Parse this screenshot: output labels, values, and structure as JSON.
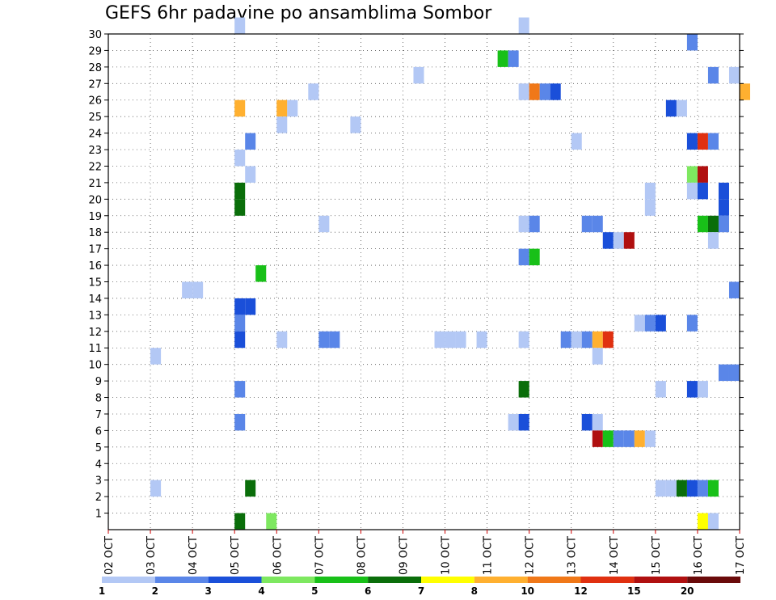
{
  "chart_data": {
    "type": "heatmap",
    "title": "GEFS 6hr padavine po ansamblima Sombor",
    "xlabel": "",
    "ylabel": "",
    "x_ticks": [
      "02 OCT",
      "03 OCT",
      "04 OCT",
      "05 OCT",
      "06 OCT",
      "07 OCT",
      "08 OCT",
      "09 OCT",
      "10 OCT",
      "11 OCT",
      "12 OCT",
      "13 OCT",
      "14 OCT",
      "15 OCT",
      "16 OCT",
      "17 OCT"
    ],
    "x_range": [
      "02 OCT 00Z",
      "17 OCT 00Z"
    ],
    "time_step_hours": 6,
    "y_ticks": [
      1,
      2,
      3,
      4,
      5,
      6,
      7,
      8,
      9,
      10,
      11,
      12,
      13,
      14,
      15,
      16,
      17,
      18,
      19,
      20,
      21,
      22,
      23,
      24,
      25,
      26,
      27,
      28,
      29,
      30
    ],
    "y_range": [
      0,
      30
    ],
    "grid": true,
    "colorbar": {
      "placement": "bottom",
      "labels": [
        "1",
        "2",
        "3",
        "4",
        "5",
        "6",
        "7",
        "8",
        "10",
        "12",
        "15",
        "20"
      ],
      "colors": [
        "#b3c8f5",
        "#5a86e8",
        "#1a4fd9",
        "#7ee860",
        "#18c018",
        "#0a6e0a",
        "#ffff00",
        "#ffb030",
        "#f07818",
        "#e03010",
        "#b01010",
        "#6a0a0a"
      ]
    },
    "cells": [
      {
        "member": 30,
        "time": "05 OCT 00Z",
        "color": "#b3c8f5"
      },
      {
        "member": 30,
        "time": "11 OCT 18Z",
        "color": "#b3c8f5"
      },
      {
        "member": 29,
        "time": "15 OCT 18Z",
        "color": "#5a86e8"
      },
      {
        "member": 28,
        "time": "11 OCT 06Z",
        "color": "#18c018"
      },
      {
        "member": 28,
        "time": "11 OCT 12Z",
        "color": "#5a86e8"
      },
      {
        "member": 27,
        "time": "09 OCT 06Z",
        "color": "#b3c8f5"
      },
      {
        "member": 27,
        "time": "16 OCT 06Z",
        "color": "#5a86e8"
      },
      {
        "member": 27,
        "time": "16 OCT 18Z",
        "color": "#b3c8f5"
      },
      {
        "member": 26,
        "time": "06 OCT 18Z",
        "color": "#b3c8f5"
      },
      {
        "member": 26,
        "time": "11 OCT 18Z",
        "color": "#b3c8f5"
      },
      {
        "member": 26,
        "time": "12 OCT 00Z",
        "color": "#f07818"
      },
      {
        "member": 26,
        "time": "12 OCT 06Z",
        "color": "#5a86e8"
      },
      {
        "member": 26,
        "time": "12 OCT 12Z",
        "color": "#1a4fd9"
      },
      {
        "member": 26,
        "time": "17 OCT 00Z",
        "color": "#ffb030"
      },
      {
        "member": 25,
        "time": "05 OCT 00Z",
        "color": "#ffb030"
      },
      {
        "member": 25,
        "time": "06 OCT 00Z",
        "color": "#ffb030"
      },
      {
        "member": 25,
        "time": "06 OCT 06Z",
        "color": "#b3c8f5"
      },
      {
        "member": 25,
        "time": "15 OCT 06Z",
        "color": "#1a4fd9"
      },
      {
        "member": 25,
        "time": "15 OCT 12Z",
        "color": "#b3c8f5"
      },
      {
        "member": 24,
        "time": "06 OCT 00Z",
        "color": "#b3c8f5"
      },
      {
        "member": 24,
        "time": "07 OCT 18Z",
        "color": "#b3c8f5"
      },
      {
        "member": 23,
        "time": "05 OCT 06Z",
        "color": "#5a86e8"
      },
      {
        "member": 23,
        "time": "13 OCT 00Z",
        "color": "#b3c8f5"
      },
      {
        "member": 23,
        "time": "15 OCT 18Z",
        "color": "#1a4fd9"
      },
      {
        "member": 23,
        "time": "16 OCT 00Z",
        "color": "#e03010"
      },
      {
        "member": 23,
        "time": "16 OCT 06Z",
        "color": "#5a86e8"
      },
      {
        "member": 22,
        "time": "05 OCT 00Z",
        "color": "#b3c8f5"
      },
      {
        "member": 21,
        "time": "05 OCT 06Z",
        "color": "#b3c8f5"
      },
      {
        "member": 21,
        "time": "15 OCT 18Z",
        "color": "#7ee860"
      },
      {
        "member": 21,
        "time": "16 OCT 00Z",
        "color": "#b01010"
      },
      {
        "member": 20,
        "time": "05 OCT 00Z",
        "color": "#0a6e0a"
      },
      {
        "member": 20,
        "time": "14 OCT 18Z",
        "color": "#b3c8f5"
      },
      {
        "member": 20,
        "time": "15 OCT 18Z",
        "color": "#b3c8f5"
      },
      {
        "member": 20,
        "time": "16 OCT 00Z",
        "color": "#1a4fd9"
      },
      {
        "member": 20,
        "time": "16 OCT 12Z",
        "color": "#1a4fd9"
      },
      {
        "member": 19,
        "time": "05 OCT 00Z",
        "color": "#0a6e0a"
      },
      {
        "member": 19,
        "time": "14 OCT 18Z",
        "color": "#b3c8f5"
      },
      {
        "member": 19,
        "time": "16 OCT 12Z",
        "color": "#1a4fd9"
      },
      {
        "member": 18,
        "time": "07 OCT 00Z",
        "color": "#b3c8f5"
      },
      {
        "member": 18,
        "time": "11 OCT 18Z",
        "color": "#b3c8f5"
      },
      {
        "member": 18,
        "time": "12 OCT 00Z",
        "color": "#5a86e8"
      },
      {
        "member": 18,
        "time": "13 OCT 06Z",
        "color": "#5a86e8"
      },
      {
        "member": 18,
        "time": "13 OCT 12Z",
        "color": "#5a86e8"
      },
      {
        "member": 18,
        "time": "16 OCT 00Z",
        "color": "#18c018"
      },
      {
        "member": 18,
        "time": "16 OCT 06Z",
        "color": "#0a6e0a"
      },
      {
        "member": 18,
        "time": "16 OCT 12Z",
        "color": "#5a86e8"
      },
      {
        "member": 17,
        "time": "13 OCT 18Z",
        "color": "#1a4fd9"
      },
      {
        "member": 17,
        "time": "14 OCT 00Z",
        "color": "#b3c8f5"
      },
      {
        "member": 17,
        "time": "14 OCT 06Z",
        "color": "#b01010"
      },
      {
        "member": 17,
        "time": "16 OCT 06Z",
        "color": "#b3c8f5"
      },
      {
        "member": 16,
        "time": "11 OCT 18Z",
        "color": "#5a86e8"
      },
      {
        "member": 16,
        "time": "12 OCT 00Z",
        "color": "#18c018"
      },
      {
        "member": 15,
        "time": "05 OCT 12Z",
        "color": "#18c018"
      },
      {
        "member": 14,
        "time": "16 OCT 18Z",
        "color": "#5a86e8"
      },
      {
        "member": 14,
        "time": "03 OCT 18Z",
        "color": "#b3c8f5"
      },
      {
        "member": 14,
        "time": "04 OCT 00Z",
        "color": "#b3c8f5"
      },
      {
        "member": 13,
        "time": "05 OCT 00Z",
        "color": "#1a4fd9"
      },
      {
        "member": 13,
        "time": "05 OCT 06Z",
        "color": "#1a4fd9"
      },
      {
        "member": 12,
        "time": "05 OCT 00Z",
        "color": "#5a86e8"
      },
      {
        "member": 12,
        "time": "14 OCT 12Z",
        "color": "#b3c8f5"
      },
      {
        "member": 12,
        "time": "14 OCT 18Z",
        "color": "#5a86e8"
      },
      {
        "member": 12,
        "time": "15 OCT 00Z",
        "color": "#1a4fd9"
      },
      {
        "member": 12,
        "time": "15 OCT 18Z",
        "color": "#5a86e8"
      },
      {
        "member": 11,
        "time": "05 OCT 00Z",
        "color": "#1a4fd9"
      },
      {
        "member": 11,
        "time": "06 OCT 00Z",
        "color": "#b3c8f5"
      },
      {
        "member": 11,
        "time": "07 OCT 00Z",
        "color": "#5a86e8"
      },
      {
        "member": 11,
        "time": "07 OCT 06Z",
        "color": "#5a86e8"
      },
      {
        "member": 11,
        "time": "09 OCT 18Z",
        "color": "#b3c8f5"
      },
      {
        "member": 11,
        "time": "10 OCT 00Z",
        "color": "#b3c8f5"
      },
      {
        "member": 11,
        "time": "10 OCT 06Z",
        "color": "#b3c8f5"
      },
      {
        "member": 11,
        "time": "10 OCT 18Z",
        "color": "#b3c8f5"
      },
      {
        "member": 11,
        "time": "11 OCT 18Z",
        "color": "#b3c8f5"
      },
      {
        "member": 11,
        "time": "12 OCT 18Z",
        "color": "#5a86e8"
      },
      {
        "member": 11,
        "time": "13 OCT 00Z",
        "color": "#b3c8f5"
      },
      {
        "member": 11,
        "time": "13 OCT 06Z",
        "color": "#5a86e8"
      },
      {
        "member": 11,
        "time": "13 OCT 12Z",
        "color": "#ffb030"
      },
      {
        "member": 11,
        "time": "13 OCT 18Z",
        "color": "#e03010"
      },
      {
        "member": 10,
        "time": "03 OCT 00Z",
        "color": "#b3c8f5"
      },
      {
        "member": 10,
        "time": "13 OCT 12Z",
        "color": "#b3c8f5"
      },
      {
        "member": 9,
        "time": "16 OCT 12Z",
        "color": "#5a86e8"
      },
      {
        "member": 9,
        "time": "16 OCT 18Z",
        "color": "#5a86e8"
      },
      {
        "member": 8,
        "time": "05 OCT 00Z",
        "color": "#5a86e8"
      },
      {
        "member": 8,
        "time": "11 OCT 18Z",
        "color": "#0a6e0a"
      },
      {
        "member": 8,
        "time": "15 OCT 18Z",
        "color": "#1a4fd9"
      },
      {
        "member": 8,
        "time": "15 OCT 00Z",
        "color": "#b3c8f5"
      },
      {
        "member": 8,
        "time": "16 OCT 00Z",
        "color": "#b3c8f5"
      },
      {
        "member": 6,
        "time": "05 OCT 00Z",
        "color": "#5a86e8"
      },
      {
        "member": 6,
        "time": "11 OCT 12Z",
        "color": "#b3c8f5"
      },
      {
        "member": 6,
        "time": "11 OCT 18Z",
        "color": "#1a4fd9"
      },
      {
        "member": 6,
        "time": "13 OCT 06Z",
        "color": "#1a4fd9"
      },
      {
        "member": 6,
        "time": "13 OCT 12Z",
        "color": "#b3c8f5"
      },
      {
        "member": 5,
        "time": "13 OCT 12Z",
        "color": "#b01010"
      },
      {
        "member": 5,
        "time": "13 OCT 18Z",
        "color": "#18c018"
      },
      {
        "member": 5,
        "time": "14 OCT 00Z",
        "color": "#5a86e8"
      },
      {
        "member": 5,
        "time": "14 OCT 06Z",
        "color": "#5a86e8"
      },
      {
        "member": 5,
        "time": "14 OCT 12Z",
        "color": "#ffb030"
      },
      {
        "member": 5,
        "time": "14 OCT 18Z",
        "color": "#b3c8f5"
      },
      {
        "member": 2,
        "time": "03 OCT 00Z",
        "color": "#b3c8f5"
      },
      {
        "member": 2,
        "time": "05 OCT 06Z",
        "color": "#0a6e0a"
      },
      {
        "member": 2,
        "time": "15 OCT 00Z",
        "color": "#b3c8f5"
      },
      {
        "member": 2,
        "time": "15 OCT 06Z",
        "color": "#b3c8f5"
      },
      {
        "member": 2,
        "time": "15 OCT 12Z",
        "color": "#0a6e0a"
      },
      {
        "member": 2,
        "time": "15 OCT 18Z",
        "color": "#1a4fd9"
      },
      {
        "member": 2,
        "time": "16 OCT 00Z",
        "color": "#5a86e8"
      },
      {
        "member": 2,
        "time": "16 OCT 06Z",
        "color": "#18c018"
      },
      {
        "member": 0,
        "time": "05 OCT 00Z",
        "color": "#0a6e0a"
      },
      {
        "member": 0,
        "time": "05 OCT 18Z",
        "color": "#7ee860"
      },
      {
        "member": 0,
        "time": "16 OCT 00Z",
        "color": "#ffff00"
      },
      {
        "member": 0,
        "time": "16 OCT 06Z",
        "color": "#b3c8f5"
      }
    ]
  }
}
